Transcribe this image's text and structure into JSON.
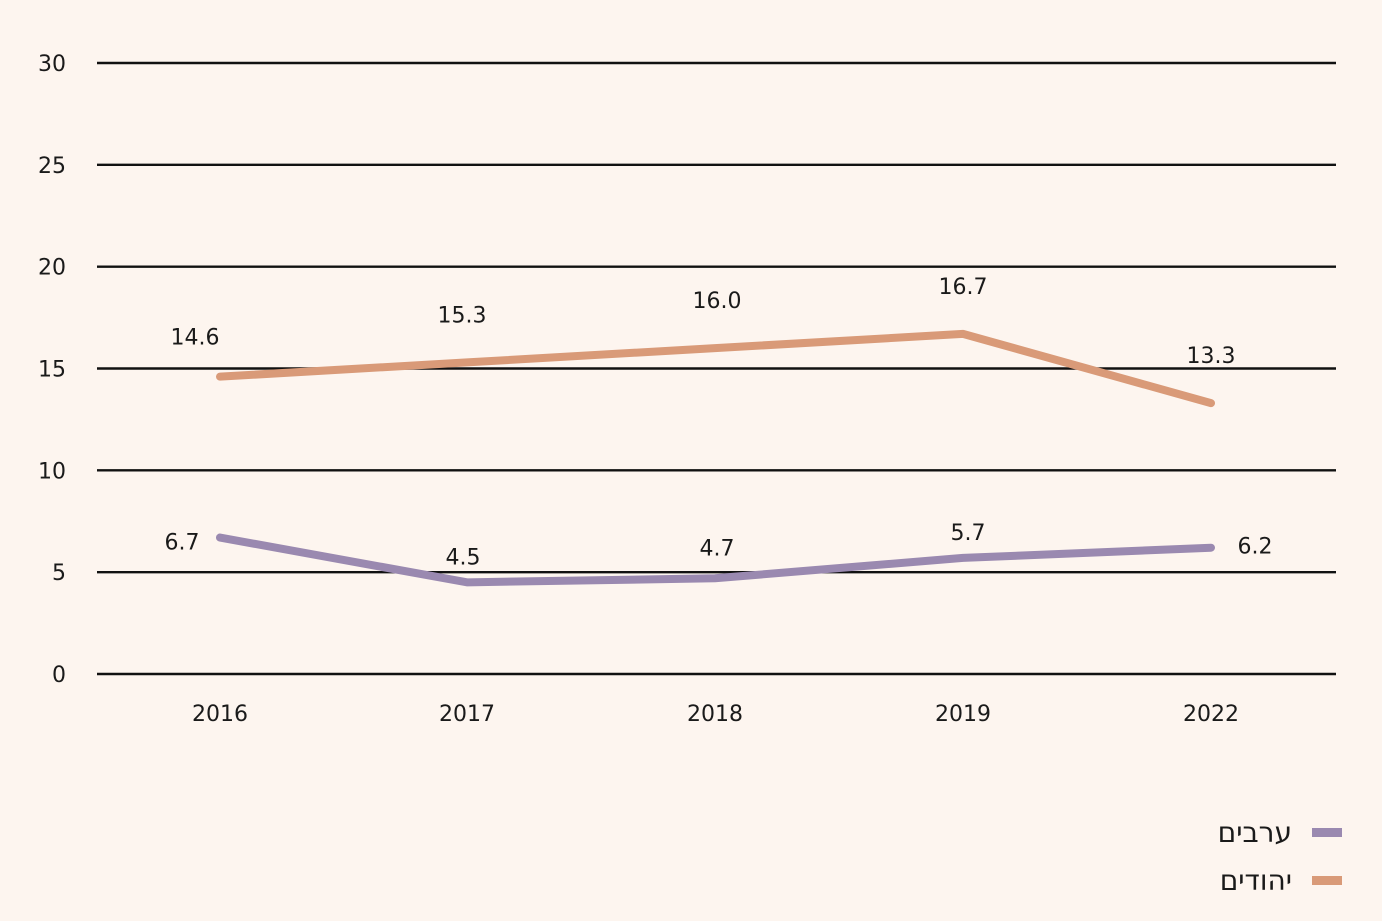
{
  "colors": {
    "background": "#fdf5ef",
    "grid": "#111111",
    "arabs": "#9a89b0",
    "jews": "#d99a78"
  },
  "chart_data": {
    "type": "line",
    "categories": [
      "2016",
      "2017",
      "2018",
      "2019",
      "2022"
    ],
    "ylim": [
      0,
      30
    ],
    "yticks": [
      0,
      5,
      10,
      15,
      20,
      25,
      30
    ],
    "grid": true,
    "legend_position": "bottom-right",
    "series": [
      {
        "name": "יהודים",
        "color": "#d99a78",
        "values": [
          14.6,
          15.3,
          16.0,
          16.7,
          13.3
        ],
        "labels": [
          "14.6",
          "15.3",
          "16.0",
          "16.7",
          "13.3"
        ]
      },
      {
        "name": "ערבים",
        "color": "#9a89b0",
        "values": [
          6.7,
          4.5,
          4.7,
          5.7,
          6.2
        ],
        "labels": [
          "6.7",
          "4.5",
          "4.7",
          "5.7",
          "6.2"
        ]
      }
    ]
  },
  "legend": {
    "items": [
      {
        "label": "ערבים",
        "color": "#9a89b0"
      },
      {
        "label": "יהודים",
        "color": "#d99a78"
      }
    ]
  }
}
